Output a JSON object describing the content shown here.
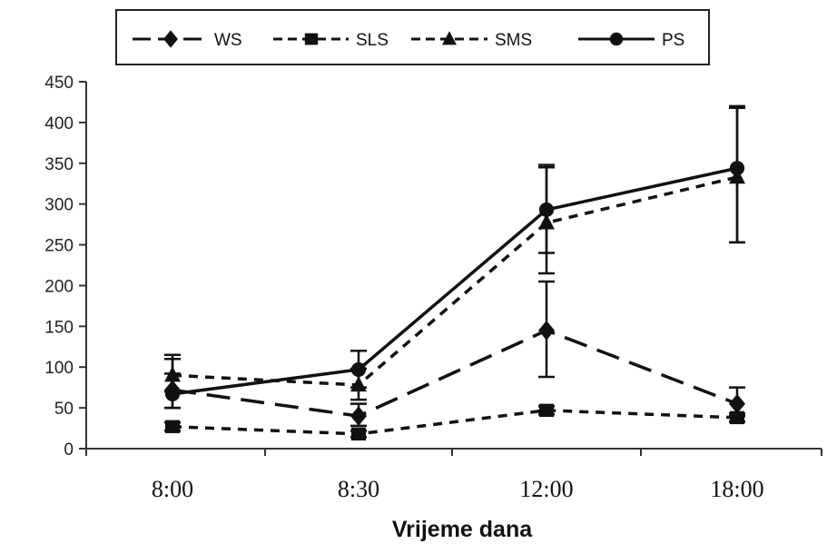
{
  "chart_data": {
    "type": "line",
    "xlabel": "Vrijeme dana",
    "ylabel": "",
    "categories": [
      "8:00",
      "8:30",
      "12:00",
      "18:00"
    ],
    "ylim": [
      0,
      450
    ],
    "yticks": [
      0,
      50,
      100,
      150,
      200,
      250,
      300,
      350,
      400,
      450
    ],
    "grid": false,
    "legend_position": "top",
    "series": [
      {
        "name": "WS",
        "values": [
          72,
          40,
          145,
          55
        ],
        "error_low": [
          50,
          28,
          88,
          40
        ],
        "error_high": [
          92,
          55,
          205,
          75
        ],
        "marker": "diamond",
        "dash": "long-dash"
      },
      {
        "name": "SLS",
        "values": [
          27,
          18,
          47,
          38
        ],
        "error_low": [
          22,
          14,
          42,
          33
        ],
        "error_high": [
          32,
          22,
          52,
          43
        ],
        "marker": "square",
        "dash": "short-dash"
      },
      {
        "name": "SMS",
        "values": [
          90,
          78,
          277,
          333
        ],
        "error_low": [
          70,
          60,
          215,
          253
        ],
        "error_high": [
          110,
          98,
          345,
          418
        ],
        "marker": "triangle",
        "dash": "short-dash"
      },
      {
        "name": "PS",
        "values": [
          67,
          97,
          293,
          344
        ],
        "error_low": [
          50,
          75,
          240,
          253
        ],
        "error_high": [
          115,
          120,
          348,
          420
        ],
        "marker": "circle",
        "dash": "solid"
      }
    ]
  }
}
